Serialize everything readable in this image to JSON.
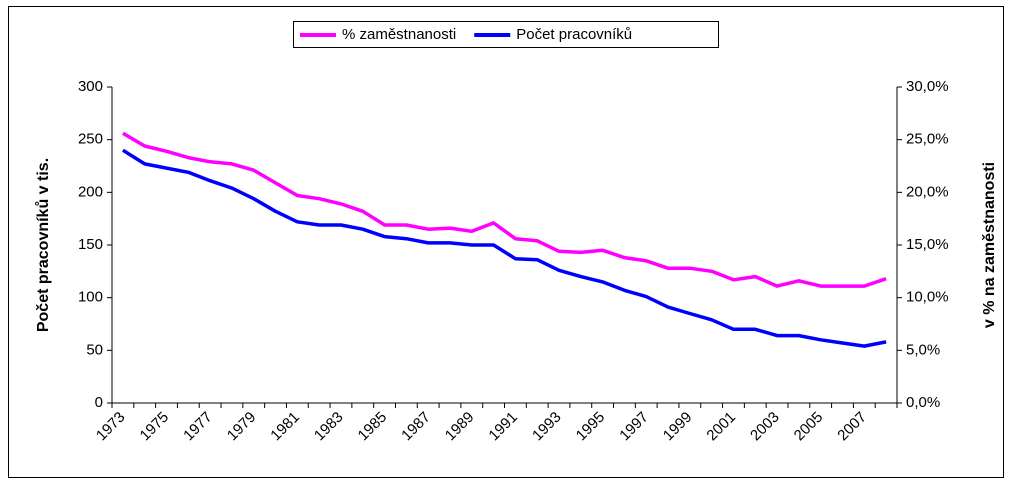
{
  "chart_data": {
    "type": "line",
    "ylabel": "Počet pracovníků v tis.",
    "y2label": "v % na zaměstnanosti",
    "categories": [
      "1973",
      null,
      "1975",
      null,
      "1977",
      null,
      "1979",
      null,
      "1981",
      null,
      "1983",
      null,
      "1985",
      null,
      "1987",
      null,
      "1989",
      null,
      "1991",
      null,
      "1993",
      null,
      "1995",
      null,
      "1997",
      null,
      "1999",
      null,
      "2001",
      null,
      "2003",
      null,
      "2005",
      null,
      "2007",
      null
    ],
    "series": [
      {
        "name": "% zaměstnanosti",
        "color": "#ff00ff",
        "axis": "y2",
        "values": [
          25.6,
          24.4,
          23.9,
          23.3,
          22.9,
          22.7,
          22.1,
          20.9,
          19.7,
          19.4,
          18.9,
          18.2,
          16.9,
          16.9,
          16.5,
          16.6,
          16.3,
          17.1,
          15.6,
          15.4,
          14.4,
          14.3,
          14.5,
          13.8,
          13.5,
          12.8,
          12.8,
          12.5,
          11.7,
          12.0,
          11.1,
          11.6,
          11.1,
          11.1,
          11.1,
          11.8
        ]
      },
      {
        "name": "Počet pracovníků",
        "color": "#0000ff",
        "values": [
          240,
          227,
          223,
          219,
          211,
          204,
          194,
          182,
          172,
          169,
          169,
          165,
          158,
          156,
          152,
          152,
          150,
          150,
          137,
          136,
          126,
          120,
          115,
          107,
          101,
          91,
          85,
          79,
          70,
          70,
          64,
          64,
          60,
          57,
          54,
          58
        ]
      }
    ],
    "ylim": [
      0,
      300
    ],
    "yticks": [
      0,
      50,
      100,
      150,
      200,
      250,
      300
    ],
    "y2lim": [
      0,
      30
    ],
    "y2ticks": [
      {
        "value": 0,
        "label": "0,0%"
      },
      {
        "value": 5,
        "label": "5,0%"
      },
      {
        "value": 10,
        "label": "10,0%"
      },
      {
        "value": 15,
        "label": "15,0%"
      },
      {
        "value": 20,
        "label": "20,0%"
      },
      {
        "value": 25,
        "label": "25,0%"
      },
      {
        "value": 30,
        "label": "30,0%"
      }
    ],
    "legend": "top"
  }
}
